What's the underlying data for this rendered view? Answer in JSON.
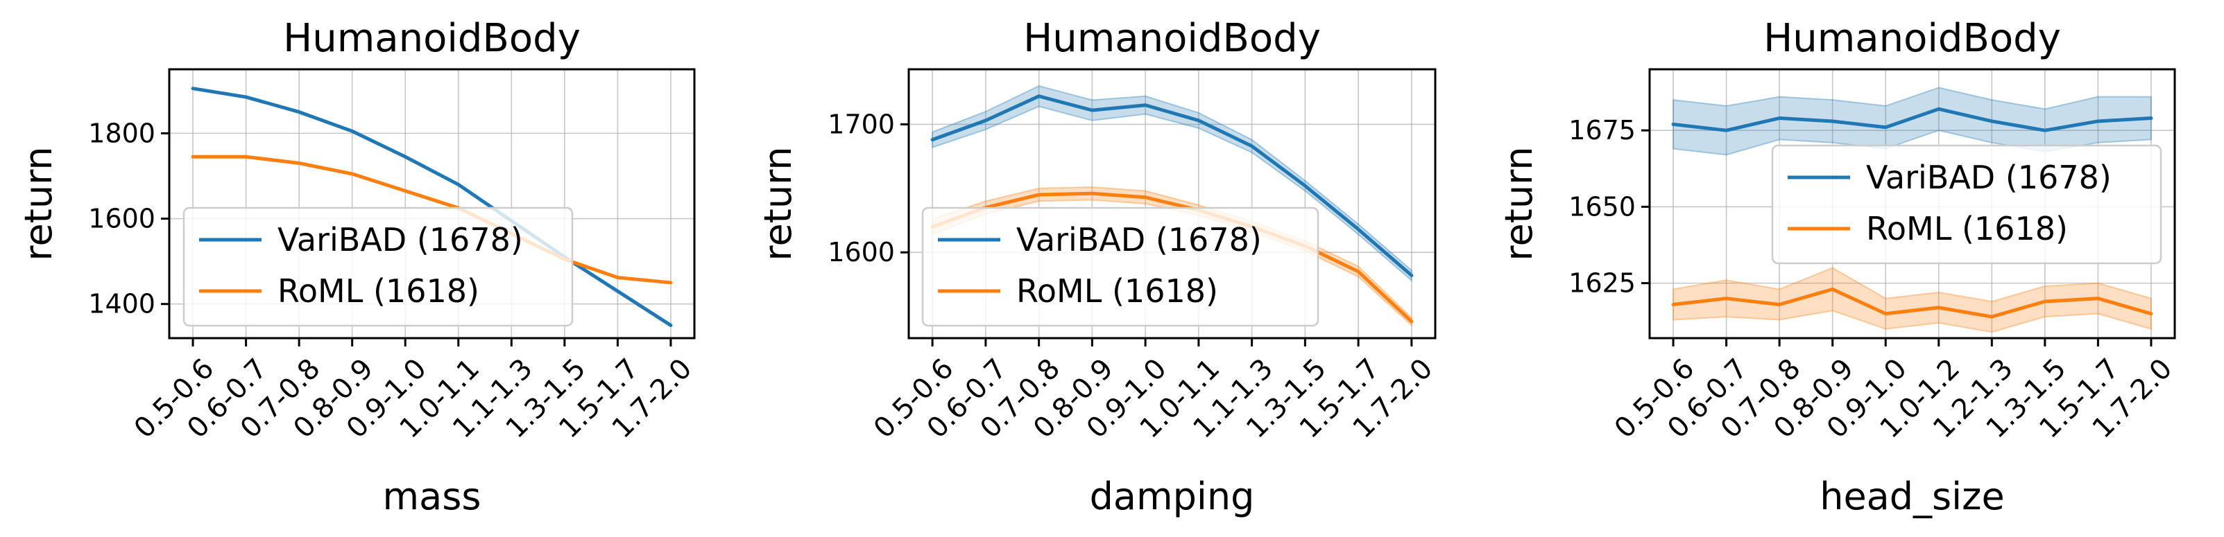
{
  "chart_data": [
    {
      "type": "line",
      "title": "HumanoidBody",
      "xlabel": "mass",
      "ylabel": "return",
      "categories": [
        "0.5-0.6",
        "0.6-0.7",
        "0.7-0.8",
        "0.8-0.9",
        "0.9-1.0",
        "1.0-1.1",
        "1.1-1.3",
        "1.3-1.5",
        "1.5-1.7",
        "1.7-2.0"
      ],
      "ylim": [
        1320,
        1950
      ],
      "yticks": [
        1400,
        1600,
        1800
      ],
      "grid": true,
      "legend": "center-left",
      "series": [
        {
          "name": "VariBAD (1678)",
          "color": "#1f77b4",
          "values": [
            1905,
            1885,
            1850,
            1805,
            1745,
            1680,
            1595,
            1510,
            1430,
            1350
          ],
          "lower": [
            1903,
            1883,
            1848,
            1803,
            1743,
            1678,
            1593,
            1508,
            1428,
            1348
          ],
          "upper": [
            1907,
            1887,
            1852,
            1807,
            1747,
            1682,
            1597,
            1512,
            1432,
            1352
          ]
        },
        {
          "name": "RoML (1618)",
          "color": "#ff7f0e",
          "values": [
            1745,
            1745,
            1730,
            1705,
            1665,
            1625,
            1565,
            1505,
            1462,
            1450
          ],
          "lower": [
            1743,
            1743,
            1728,
            1703,
            1663,
            1623,
            1563,
            1503,
            1460,
            1448
          ],
          "upper": [
            1747,
            1747,
            1732,
            1707,
            1667,
            1627,
            1567,
            1507,
            1464,
            1452
          ]
        }
      ]
    },
    {
      "type": "line",
      "title": "HumanoidBody",
      "xlabel": "damping",
      "ylabel": "return",
      "categories": [
        "0.5-0.6",
        "0.6-0.7",
        "0.7-0.8",
        "0.8-0.9",
        "0.9-1.0",
        "1.0-1.1",
        "1.1-1.3",
        "1.3-1.5",
        "1.5-1.7",
        "1.7-2.0"
      ],
      "ylim": [
        1533,
        1743
      ],
      "yticks": [
        1600,
        1700
      ],
      "grid": true,
      "legend": "lower-left",
      "series": [
        {
          "name": "VariBAD (1678)",
          "color": "#1f77b4",
          "values": [
            1688,
            1703,
            1722,
            1711,
            1715,
            1703,
            1683,
            1652,
            1618,
            1582
          ],
          "lower": [
            1682,
            1696,
            1714,
            1703,
            1708,
            1697,
            1678,
            1648,
            1614,
            1578
          ],
          "upper": [
            1694,
            1710,
            1730,
            1719,
            1722,
            1709,
            1688,
            1656,
            1622,
            1586
          ]
        },
        {
          "name": "RoML (1618)",
          "color": "#ff7f0e",
          "values": [
            1620,
            1635,
            1645,
            1646,
            1643,
            1633,
            1620,
            1605,
            1585,
            1546
          ],
          "lower": [
            1614,
            1630,
            1640,
            1641,
            1638,
            1629,
            1616,
            1601,
            1581,
            1543
          ],
          "upper": [
            1626,
            1640,
            1650,
            1651,
            1648,
            1637,
            1624,
            1609,
            1589,
            1549
          ]
        }
      ]
    },
    {
      "type": "line",
      "title": "HumanoidBody",
      "xlabel": "head_size",
      "ylabel": "return",
      "categories": [
        "0.5-0.6",
        "0.6-0.7",
        "0.7-0.8",
        "0.8-0.9",
        "0.9-1.0",
        "1.0-1.2",
        "1.2-1.3",
        "1.3-1.5",
        "1.5-1.7",
        "1.7-2.0"
      ],
      "ylim": [
        1607,
        1695
      ],
      "yticks": [
        1625,
        1650,
        1675
      ],
      "grid": true,
      "legend": "upper-right",
      "series": [
        {
          "name": "VariBAD (1678)",
          "color": "#1f77b4",
          "values": [
            1677,
            1675,
            1679,
            1678,
            1676,
            1682,
            1678,
            1675,
            1678,
            1679
          ],
          "lower": [
            1669,
            1667,
            1672,
            1671,
            1669,
            1675,
            1671,
            1668,
            1671,
            1672
          ],
          "upper": [
            1685,
            1683,
            1686,
            1685,
            1683,
            1689,
            1685,
            1682,
            1686,
            1686
          ]
        },
        {
          "name": "RoML (1618)",
          "color": "#ff7f0e",
          "values": [
            1618,
            1620,
            1618,
            1623,
            1615,
            1617,
            1614,
            1619,
            1620,
            1615
          ],
          "lower": [
            1613,
            1614,
            1613,
            1616,
            1610,
            1612,
            1609,
            1614,
            1615,
            1610
          ],
          "upper": [
            1623,
            1626,
            1623,
            1630,
            1620,
            1622,
            1619,
            1624,
            1625,
            1620
          ]
        }
      ]
    }
  ]
}
